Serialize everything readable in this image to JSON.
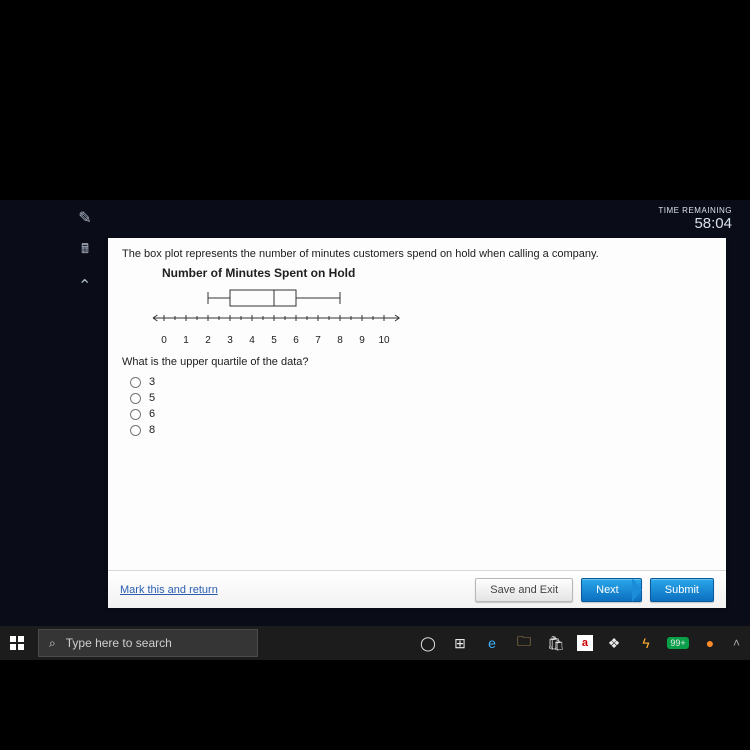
{
  "timer": {
    "label": "TIME REMAINING",
    "value": "58:04"
  },
  "sidebar": {
    "pencil_label": "edit-icon",
    "calc_label": "calculator-icon",
    "up_label": "collapse-icon"
  },
  "problem": {
    "intro": "The box plot represents the number of minutes customers spend on hold when calling a company.",
    "chart_title": "Number of Minutes Spent on Hold",
    "question": "What is the upper quartile of the data?",
    "options": [
      "3",
      "5",
      "6",
      "8"
    ]
  },
  "boxplot": {
    "min": 0,
    "max": 10,
    "ticks": [
      "0",
      "1",
      "2",
      "3",
      "4",
      "5",
      "6",
      "7",
      "8",
      "9",
      "10"
    ],
    "whisker_low": 2,
    "q1": 3,
    "median": 5,
    "q3": 6,
    "whisker_high": 8,
    "line_color": "#333333",
    "tick_spacing_px": 22
  },
  "footer": {
    "mark": "Mark this and return",
    "save": "Save and Exit",
    "next": "Next",
    "submit": "Submit"
  },
  "taskbar": {
    "search_placeholder": "Type here to search",
    "tray": [
      "◯",
      "⊞",
      "e",
      "📁",
      "⊡",
      "a",
      "⋮⋮",
      "ϟ",
      "99+",
      "🦊"
    ]
  }
}
